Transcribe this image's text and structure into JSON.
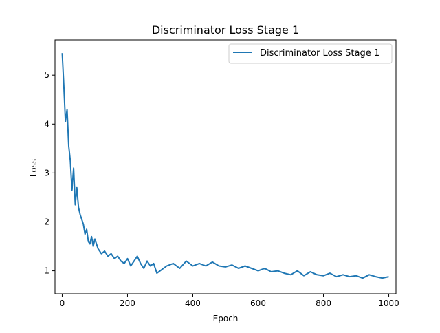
{
  "chart_data": {
    "type": "line",
    "title": "Discriminator Loss Stage 1",
    "xlabel": "Epoch",
    "ylabel": "Loss",
    "xlim": [
      -22,
      1022
    ],
    "ylim": [
      0.53,
      5.72
    ],
    "xticks": [
      0,
      200,
      400,
      600,
      800,
      1000
    ],
    "yticks": [
      1,
      2,
      3,
      4,
      5
    ],
    "grid": false,
    "legend": "top-right",
    "color": "#1f77b4",
    "series": [
      {
        "name": "Discriminator Loss Stage 1",
        "x": [
          0,
          5,
          10,
          15,
          20,
          25,
          30,
          35,
          40,
          45,
          50,
          55,
          60,
          65,
          70,
          75,
          80,
          85,
          90,
          95,
          100,
          110,
          120,
          130,
          140,
          150,
          160,
          170,
          180,
          190,
          200,
          210,
          220,
          230,
          240,
          250,
          260,
          270,
          280,
          290,
          300,
          320,
          340,
          360,
          380,
          400,
          420,
          440,
          460,
          480,
          500,
          520,
          540,
          560,
          580,
          600,
          620,
          640,
          660,
          680,
          700,
          720,
          740,
          760,
          780,
          800,
          820,
          840,
          860,
          880,
          900,
          920,
          940,
          960,
          980,
          1000
        ],
        "values": [
          5.45,
          4.8,
          4.05,
          4.3,
          3.55,
          3.25,
          2.65,
          3.1,
          2.35,
          2.7,
          2.3,
          2.15,
          2.05,
          1.95,
          1.75,
          1.85,
          1.6,
          1.55,
          1.7,
          1.5,
          1.65,
          1.45,
          1.35,
          1.4,
          1.3,
          1.35,
          1.25,
          1.3,
          1.2,
          1.15,
          1.25,
          1.1,
          1.2,
          1.3,
          1.15,
          1.05,
          1.2,
          1.1,
          1.15,
          0.95,
          1.0,
          1.1,
          1.15,
          1.05,
          1.2,
          1.1,
          1.15,
          1.1,
          1.18,
          1.1,
          1.08,
          1.12,
          1.05,
          1.1,
          1.05,
          1.0,
          1.05,
          0.98,
          1.0,
          0.95,
          0.92,
          1.0,
          0.9,
          0.98,
          0.92,
          0.9,
          0.95,
          0.88,
          0.92,
          0.88,
          0.9,
          0.85,
          0.92,
          0.88,
          0.85,
          0.88
        ]
      }
    ]
  }
}
